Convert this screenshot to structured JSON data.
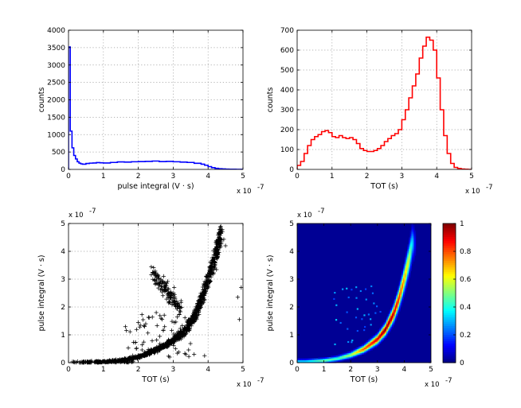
{
  "chart_data": [
    {
      "id": "hist-pulse-integral",
      "type": "line",
      "style": "stairs",
      "color": "#0000ff",
      "xlabel": "pulse integral (V · s)",
      "ylabel": "counts",
      "x_exponent_label": "x 10",
      "x_exponent": "-7",
      "xlim": [
        0,
        5
      ],
      "ylim": [
        0,
        4000
      ],
      "xticks": [
        0,
        1,
        2,
        3,
        4,
        5
      ],
      "yticks": [
        0,
        500,
        1000,
        1500,
        2000,
        2500,
        3000,
        3500,
        4000
      ],
      "grid": true,
      "x": [
        0.0,
        0.05,
        0.1,
        0.15,
        0.2,
        0.25,
        0.3,
        0.35,
        0.4,
        0.5,
        0.6,
        0.7,
        0.8,
        0.9,
        1.0,
        1.2,
        1.4,
        1.6,
        1.8,
        2.0,
        2.2,
        2.4,
        2.6,
        2.8,
        3.0,
        3.2,
        3.4,
        3.6,
        3.8,
        3.9,
        4.0,
        4.1,
        4.2,
        4.3,
        4.4,
        4.5,
        4.6,
        4.8,
        5.0
      ],
      "y": [
        3520,
        1100,
        620,
        400,
        300,
        220,
        180,
        160,
        150,
        170,
        180,
        185,
        195,
        190,
        185,
        200,
        215,
        210,
        220,
        225,
        230,
        240,
        225,
        230,
        220,
        210,
        200,
        175,
        150,
        120,
        80,
        50,
        30,
        20,
        12,
        8,
        5,
        3,
        0
      ]
    },
    {
      "id": "hist-tot",
      "type": "line",
      "style": "stairs",
      "color": "#ff0000",
      "xlabel": "TOT (s)",
      "ylabel": "counts",
      "x_exponent_label": "x 10",
      "x_exponent": "-7",
      "xlim": [
        0,
        5
      ],
      "ylim": [
        0,
        700
      ],
      "xticks": [
        0,
        1,
        2,
        3,
        4,
        5
      ],
      "yticks": [
        0,
        100,
        200,
        300,
        400,
        500,
        600,
        700
      ],
      "grid": true,
      "x": [
        0.0,
        0.1,
        0.2,
        0.3,
        0.4,
        0.5,
        0.6,
        0.7,
        0.8,
        0.9,
        1.0,
        1.1,
        1.2,
        1.3,
        1.4,
        1.5,
        1.6,
        1.7,
        1.8,
        1.9,
        2.0,
        2.1,
        2.2,
        2.3,
        2.4,
        2.5,
        2.6,
        2.7,
        2.8,
        2.9,
        3.0,
        3.1,
        3.2,
        3.3,
        3.4,
        3.5,
        3.6,
        3.7,
        3.8,
        3.9,
        4.0,
        4.1,
        4.2,
        4.3,
        4.4,
        4.5,
        4.6,
        4.7,
        4.8,
        4.9
      ],
      "y": [
        20,
        40,
        80,
        120,
        150,
        165,
        175,
        190,
        195,
        185,
        165,
        160,
        170,
        160,
        155,
        160,
        150,
        130,
        105,
        95,
        90,
        90,
        95,
        105,
        120,
        140,
        155,
        170,
        180,
        200,
        250,
        300,
        360,
        420,
        480,
        560,
        620,
        665,
        650,
        600,
        460,
        300,
        170,
        80,
        30,
        10,
        5,
        2,
        1,
        0
      ]
    },
    {
      "id": "scatter-pulse-vs-tot",
      "type": "scatter",
      "marker": "+",
      "color": "#000000",
      "xlabel": "TOT (s)",
      "ylabel": "pulse integral (V · s)",
      "x_exponent_label": "x 10",
      "x_exponent": "-7",
      "y_exponent_label": "x 10",
      "y_exponent": "-7",
      "xlim": [
        0,
        5
      ],
      "ylim": [
        0,
        5
      ],
      "xticks": [
        0,
        1,
        2,
        3,
        4,
        5
      ],
      "yticks": [
        0,
        1,
        2,
        3,
        4,
        5
      ],
      "grid": true,
      "main_trend": {
        "x": [
          0.2,
          1.0,
          1.5,
          2.0,
          2.5,
          3.0,
          3.3,
          3.6,
          3.8,
          4.0,
          4.2,
          4.4
        ],
        "y": [
          0.01,
          0.03,
          0.08,
          0.2,
          0.45,
          0.8,
          1.1,
          1.6,
          2.2,
          3.0,
          3.8,
          4.8
        ]
      },
      "secondary_cluster": {
        "x": [
          2.4,
          2.6,
          2.8,
          3.0,
          3.2
        ],
        "y": [
          3.3,
          2.9,
          2.6,
          2.3,
          2.0
        ]
      },
      "outliers": {
        "x": [
          4.5,
          4.85,
          4.9,
          4.95,
          2.9,
          3.6,
          3.9
        ],
        "y": [
          4.2,
          2.35,
          1.55,
          2.7,
          0.2,
          0.3,
          0.25
        ]
      }
    },
    {
      "id": "heatmap-pulse-vs-tot",
      "type": "heatmap",
      "colormap": "jet",
      "xlabel": "TOT (s)",
      "ylabel": "pulse integral (V · s)",
      "x_exponent_label": "x 10",
      "x_exponent": "-7",
      "y_exponent_label": "x 10",
      "y_exponent": "-7",
      "xlim": [
        0,
        5
      ],
      "ylim": [
        0,
        5
      ],
      "xticks": [
        0,
        1,
        2,
        3,
        4,
        5
      ],
      "yticks": [
        0,
        1,
        2,
        3,
        4,
        5
      ],
      "ridge": {
        "x": [
          0.3,
          1.0,
          1.5,
          2.0,
          2.5,
          3.0,
          3.3,
          3.6,
          3.8,
          4.0,
          4.2,
          4.3
        ],
        "y": [
          0.05,
          0.08,
          0.15,
          0.28,
          0.5,
          0.85,
          1.2,
          1.75,
          2.3,
          3.0,
          3.8,
          4.3
        ],
        "intensity": [
          0.35,
          0.5,
          0.45,
          0.55,
          0.8,
          0.92,
          1.0,
          0.95,
          0.85,
          0.72,
          0.55,
          0.35
        ]
      },
      "colorbar": {
        "min": 0,
        "max": 1,
        "ticks": [
          0,
          0.2,
          0.4,
          0.6,
          0.8,
          1
        ]
      }
    }
  ]
}
